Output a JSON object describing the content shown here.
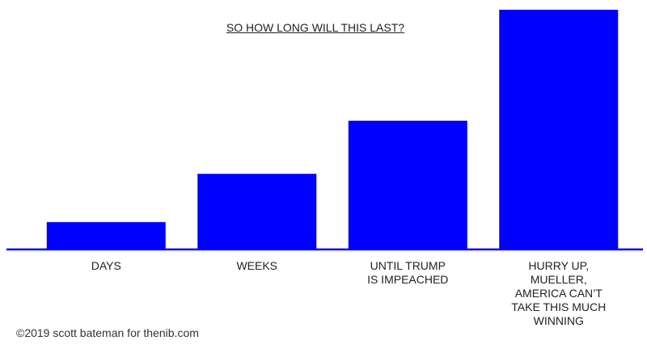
{
  "chart_data": {
    "type": "bar",
    "title": "SO HOW LONG WILL THIS LAST?",
    "categories": [
      "DAYS",
      "WEEKS",
      "UNTIL TRUMP\nIS IMPEACHED",
      "HURRY UP,\nMUELLER,\nAMERICA CAN’T\nTAKE THIS MUCH\nWINNING"
    ],
    "values": [
      34,
      94,
      160,
      298
    ],
    "color": "#0000ff",
    "ylim": [
      0,
      300
    ],
    "caption": "©2019 scott bateman for thenib.com"
  }
}
